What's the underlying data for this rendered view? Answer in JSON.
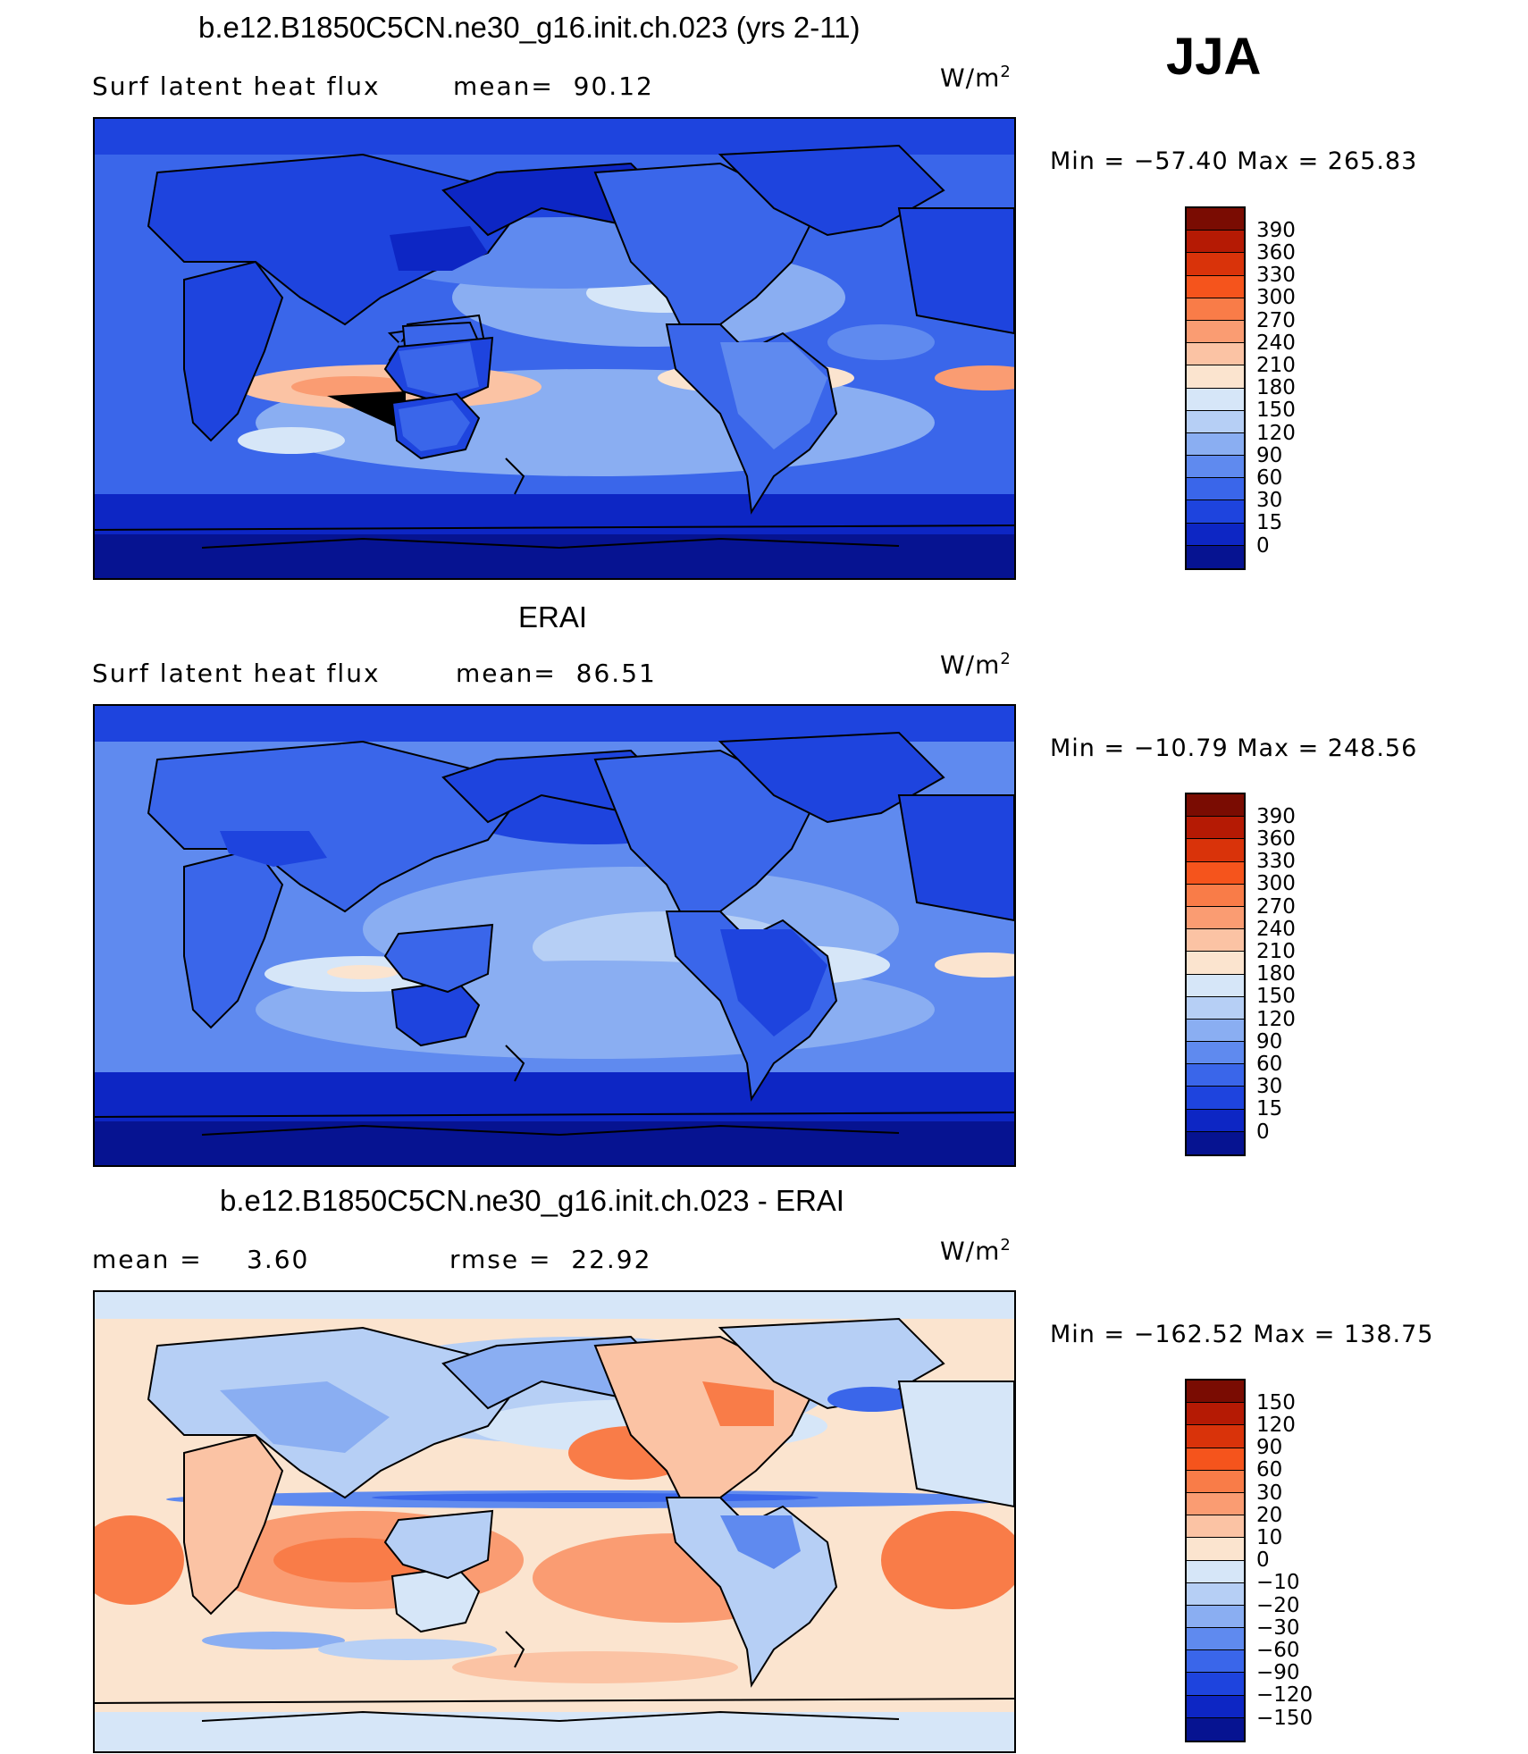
{
  "season": "JJA",
  "panels": [
    {
      "title": "b.e12.B1850C5CN.ne30_g16.init.ch.023 (yrs 2-11)",
      "left_label": "Surf latent heat flux",
      "stat1": "mean=  90.12",
      "stat2": "",
      "units": "W/m",
      "units_sup": "2",
      "minmax": "Min = −57.40 Max = 265.83",
      "palette": "abs"
    },
    {
      "title": "ERAI",
      "left_label": "Surf latent heat flux",
      "stat1": "mean=  86.51",
      "stat2": "",
      "units": "W/m",
      "units_sup": "2",
      "minmax": "Min = −10.79 Max = 248.56",
      "palette": "abs"
    },
    {
      "title": "b.e12.B1850C5CN.ne30_g16.init.ch.023 - ERAI",
      "left_label": "mean =",
      "stat1": "3.60",
      "stat2": "rmse =  22.92",
      "units": "W/m",
      "units_sup": "2",
      "minmax": "Min = −162.52 Max = 138.75",
      "palette": "diff"
    }
  ],
  "colorbars": {
    "abs": {
      "levels": [
        "390",
        "360",
        "330",
        "300",
        "270",
        "240",
        "210",
        "180",
        "150",
        "120",
        "90",
        "60",
        "30",
        "15",
        "0"
      ],
      "colors": [
        "#7a0c02",
        "#b51a04",
        "#d9330a",
        "#f5541c",
        "#f97c48",
        "#fa9c72",
        "#fbc3a4",
        "#fbe4cf",
        "#d6e6f8",
        "#b6cff5",
        "#8aaef2",
        "#5f8aef",
        "#3a66ea",
        "#1e44de",
        "#0d26c4",
        "#061391"
      ]
    },
    "diff": {
      "levels": [
        "150",
        "120",
        "90",
        "60",
        "30",
        "20",
        "10",
        "0",
        "−10",
        "−20",
        "−30",
        "−60",
        "−90",
        "−120",
        "−150"
      ],
      "colors": [
        "#7a0c02",
        "#b51a04",
        "#d9330a",
        "#f5541c",
        "#f97c48",
        "#fa9c72",
        "#fbc3a4",
        "#fbe4cf",
        "#d6e6f8",
        "#b6cff5",
        "#8aaef2",
        "#5f8aef",
        "#3a66ea",
        "#1e44de",
        "#0d26c4",
        "#061391"
      ]
    }
  }
}
